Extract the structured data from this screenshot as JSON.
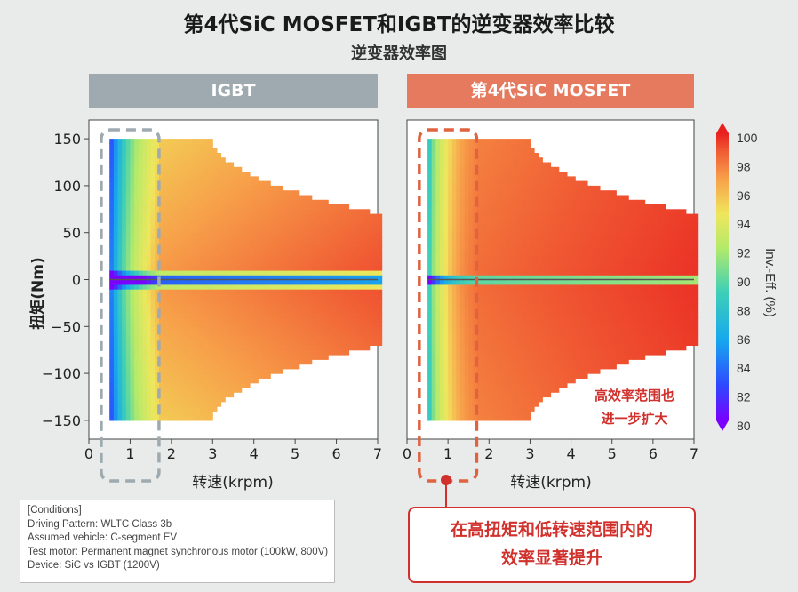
{
  "title": "第4代SiC MOSFET和IGBT的逆变器效率比较",
  "subtitle": "逆变器效率图",
  "panels": {
    "left_header": "IGBT",
    "right_header": "第4代SiC MOSFET"
  },
  "colorbar": {
    "label": "Inv.-Eff. (%)",
    "ticks": [
      "100",
      "98",
      "96",
      "94",
      "92",
      "90",
      "88",
      "86",
      "84",
      "82",
      "80"
    ],
    "min": 80,
    "max": 100
  },
  "annotation": {
    "line1": "高效率范围也",
    "line2": "进一步扩大"
  },
  "callout": {
    "line1": "在高扭矩和低转速范围内的",
    "line2": "效率显著提升"
  },
  "conditions": [
    "[Conditions]",
    "Driving Pattern: WLTC Class 3b",
    "Assumed vehicle: C-segment EV",
    "Test motor: Permanent magnet synchronous motor (100kW, 800V)",
    "Device: SiC vs IGBT (1200V)"
  ],
  "chart_data": [
    {
      "type": "heatmap",
      "title": "IGBT",
      "xlabel": "转速(krpm)",
      "ylabel": "扭矩(Nm)",
      "xlim": [
        0,
        7
      ],
      "ylim": [
        -170,
        170
      ],
      "xticks": [
        "0",
        "1",
        "2",
        "3",
        "4",
        "5",
        "6",
        "7"
      ],
      "yticks": [
        "150",
        "100",
        "50",
        "0",
        "−50",
        "−100",
        "−150"
      ],
      "value_range": [
        80,
        100
      ],
      "max_torque_nm": 150,
      "torque_at_max_speed_nm": 70,
      "highlight_region_krpm": [
        0.3,
        1.7
      ]
    },
    {
      "type": "heatmap",
      "title": "第4代SiC MOSFET",
      "xlabel": "转速(krpm)",
      "ylabel": "",
      "xlim": [
        0,
        7
      ],
      "ylim": [
        -170,
        170
      ],
      "xticks": [
        "0",
        "1",
        "2",
        "3",
        "4",
        "5",
        "6",
        "7"
      ],
      "yticks": [],
      "value_range": [
        80,
        100
      ],
      "max_torque_nm": 150,
      "torque_at_max_speed_nm": 70,
      "highlight_region_krpm": [
        0.3,
        1.7
      ]
    }
  ]
}
